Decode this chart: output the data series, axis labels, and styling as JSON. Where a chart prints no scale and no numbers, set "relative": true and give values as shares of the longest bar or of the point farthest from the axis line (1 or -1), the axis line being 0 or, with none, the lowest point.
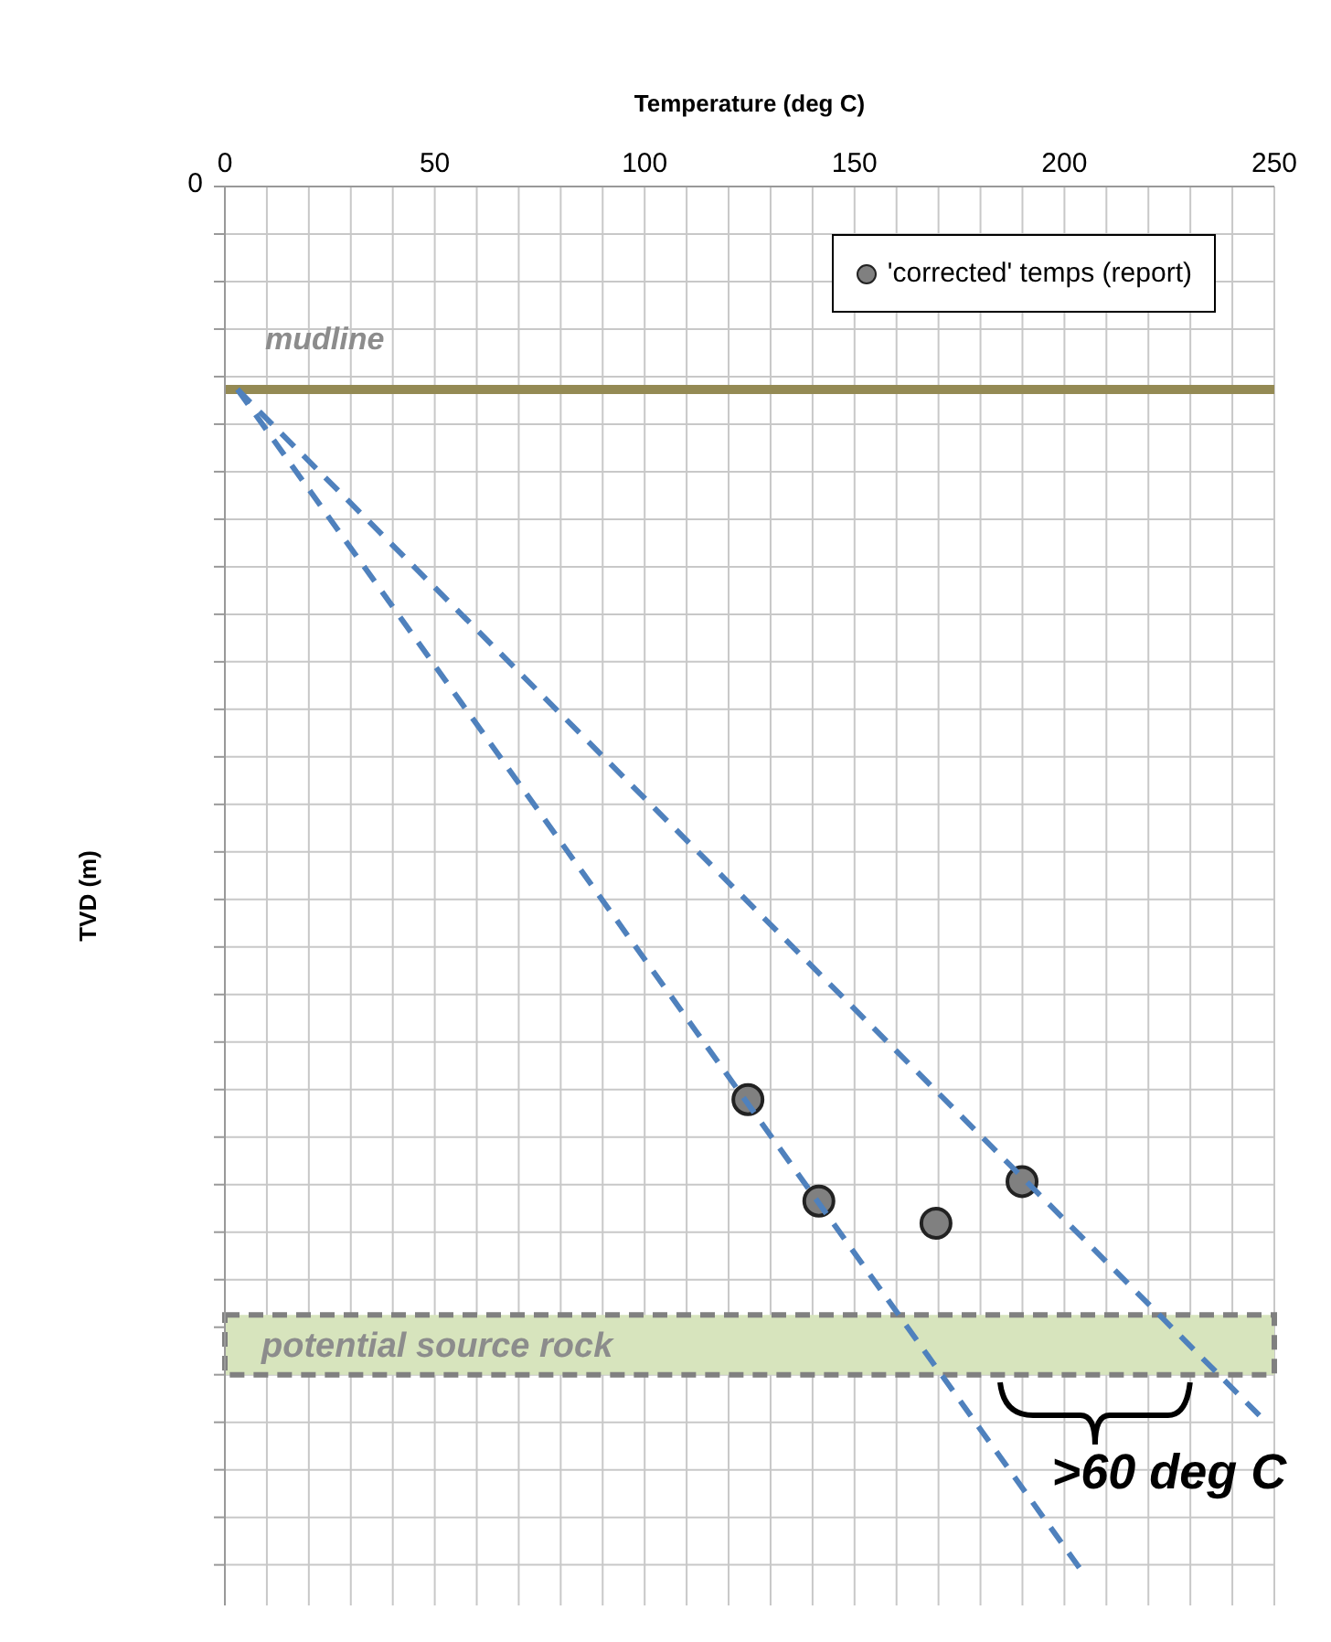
{
  "chart_data": {
    "type": "scatter",
    "xlabel": "Temperature (deg C)",
    "ylabel": "TVD (m)",
    "relative": true,
    "series": [
      {
        "name": "'corrected' temps (report)",
        "color": "#808080",
        "x": [
          124.6,
          141.5,
          169.4,
          189.9
        ],
        "values": [
          -0.657,
          -0.73,
          -0.746,
          -0.716
        ]
      },
      {
        "type": "line",
        "color": "#4f81bd",
        "line_style": "dashed",
        "marker": "none",
        "x": [
          3,
          248
        ],
        "values": [
          -0.146,
          -0.889
        ]
      },
      {
        "type": "line",
        "color": "#4f81bd",
        "line_style": "dashed",
        "marker": "none",
        "x": [
          3,
          205
        ],
        "values": [
          -0.146,
          -1
        ]
      }
    ],
    "marker": "circle",
    "xlim": [
      0,
      250
    ],
    "xticks": [
      0,
      {
        "value": 10,
        "label": null
      },
      {
        "value": 20,
        "label": null
      },
      {
        "value": 30,
        "label": null
      },
      {
        "value": 40,
        "label": null
      },
      50,
      {
        "value": 60,
        "label": null
      },
      {
        "value": 70,
        "label": null
      },
      {
        "value": 80,
        "label": null
      },
      {
        "value": 90,
        "label": null
      },
      100,
      {
        "value": 110,
        "label": null
      },
      {
        "value": 120,
        "label": null
      },
      {
        "value": 130,
        "label": null
      },
      {
        "value": 140,
        "label": null
      },
      150,
      {
        "value": 160,
        "label": null
      },
      {
        "value": 170,
        "label": null
      },
      {
        "value": 180,
        "label": null
      },
      {
        "value": 190,
        "label": null
      },
      200,
      {
        "value": 210,
        "label": null
      },
      {
        "value": 220,
        "label": null
      },
      {
        "value": 230,
        "label": null
      },
      {
        "value": 240,
        "label": null
      },
      250
    ],
    "grid": true,
    "legend": "top right",
    "ref_lines": [
      {
        "axis": "y",
        "value": -0.146,
        "label": "mudline",
        "color": "#948a54"
      }
    ],
    "bands": [
      {
        "axis": "y",
        "from": -0.855,
        "to": -0.812,
        "label": "potential source rock",
        "color": "#d7e4bd"
      }
    ],
    "annotations": [
      "0",
      ">60 deg C"
    ]
  }
}
